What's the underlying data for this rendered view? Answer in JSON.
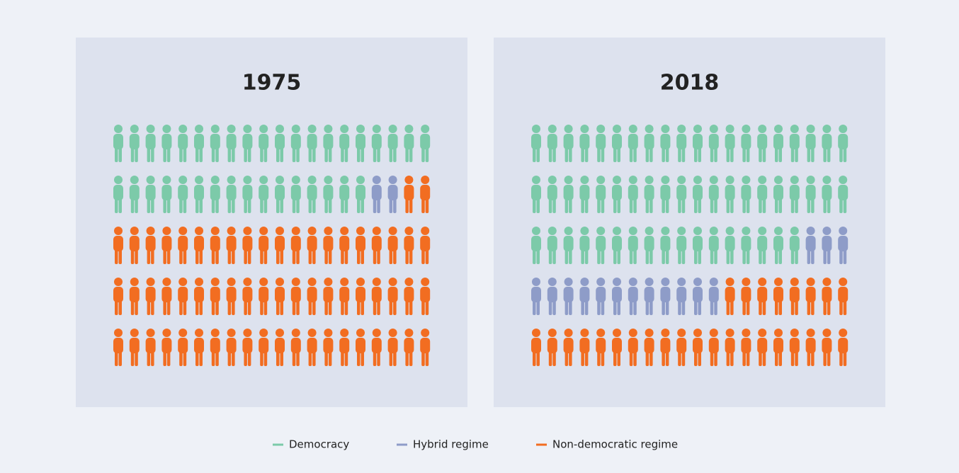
{
  "chart_data": {
    "type": "pictogram",
    "categories": [
      "1975",
      "2018"
    ],
    "series": [
      {
        "name": "Democracy",
        "color": "#7ccaa9",
        "values": [
          36,
          57
        ]
      },
      {
        "name": "Hybrid regime",
        "color": "#8e9cc8",
        "values": [
          2,
          15
        ]
      },
      {
        "name": "Non-democratic regime",
        "color": "#f26d21",
        "values": [
          62,
          28
        ]
      }
    ]
  }
}
